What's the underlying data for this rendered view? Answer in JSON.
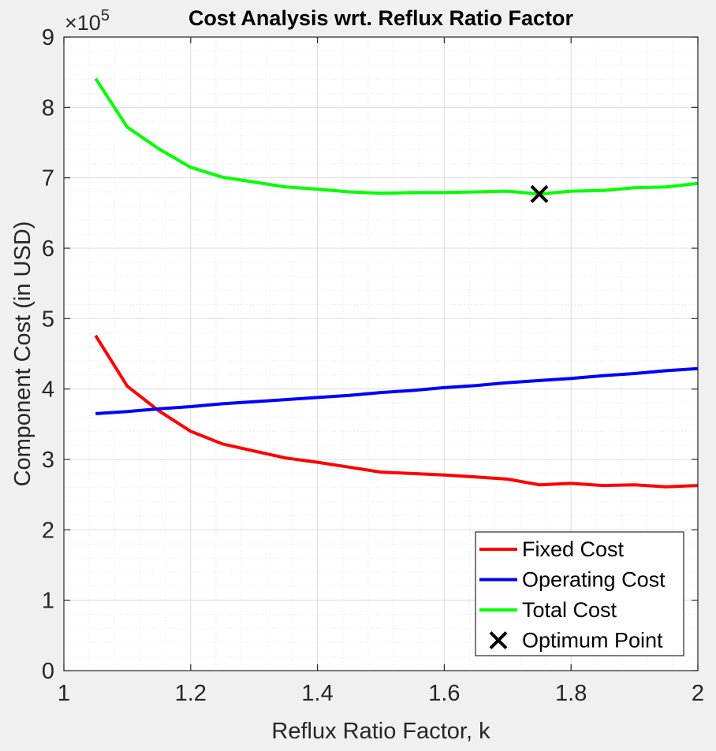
{
  "chart_data": {
    "type": "line",
    "title": "Cost Analysis wrt. Reflux Ratio Factor",
    "xlabel": "Reflux Ratio Factor, k",
    "ylabel": "Component Cost (in USD)",
    "y_exponent_label": "×10",
    "y_exponent_power": "5",
    "xlim": [
      1,
      2
    ],
    "ylim": [
      0,
      900000
    ],
    "x_ticks": [
      1,
      1.2,
      1.4,
      1.6,
      1.8,
      2
    ],
    "x_tick_labels": [
      "1",
      "1.2",
      "1.4",
      "1.6",
      "1.8",
      "2"
    ],
    "y_ticks": [
      0,
      100000,
      200000,
      300000,
      400000,
      500000,
      600000,
      700000,
      800000,
      900000
    ],
    "y_tick_labels": [
      "0",
      "1",
      "2",
      "3",
      "4",
      "5",
      "6",
      "7",
      "8",
      "9"
    ],
    "grid": true,
    "minor_grid": true,
    "legend_position": "bottom-right",
    "x": [
      1.05,
      1.1,
      1.15,
      1.2,
      1.25,
      1.3,
      1.35,
      1.4,
      1.45,
      1.5,
      1.55,
      1.6,
      1.65,
      1.7,
      1.75,
      1.8,
      1.85,
      1.9,
      1.95,
      2.0
    ],
    "series": [
      {
        "name": "Fixed Cost",
        "color": "#ff0000",
        "values": [
          476000,
          404000,
          369000,
          340000,
          322000,
          312000,
          302000,
          296000,
          289000,
          282000,
          280000,
          278000,
          275000,
          272000,
          264000,
          266000,
          263000,
          264000,
          261000,
          263000
        ]
      },
      {
        "name": "Operating Cost",
        "color": "#0000ff",
        "values": [
          365000,
          368000,
          372000,
          375000,
          379000,
          382000,
          385000,
          388000,
          391000,
          395000,
          398000,
          402000,
          405000,
          409000,
          412000,
          415000,
          419000,
          422000,
          426000,
          429000
        ]
      },
      {
        "name": "Total Cost",
        "color": "#00ff00",
        "values": [
          841000,
          772000,
          741000,
          715000,
          701000,
          694000,
          687000,
          684000,
          680000,
          678000,
          679000,
          679000,
          680000,
          681000,
          677000,
          681000,
          682000,
          686000,
          687000,
          692000
        ]
      }
    ],
    "markers": [
      {
        "name": "Optimum Point",
        "x": 1.75,
        "y": 677000,
        "symbol": "x",
        "color": "#000000"
      }
    ]
  }
}
